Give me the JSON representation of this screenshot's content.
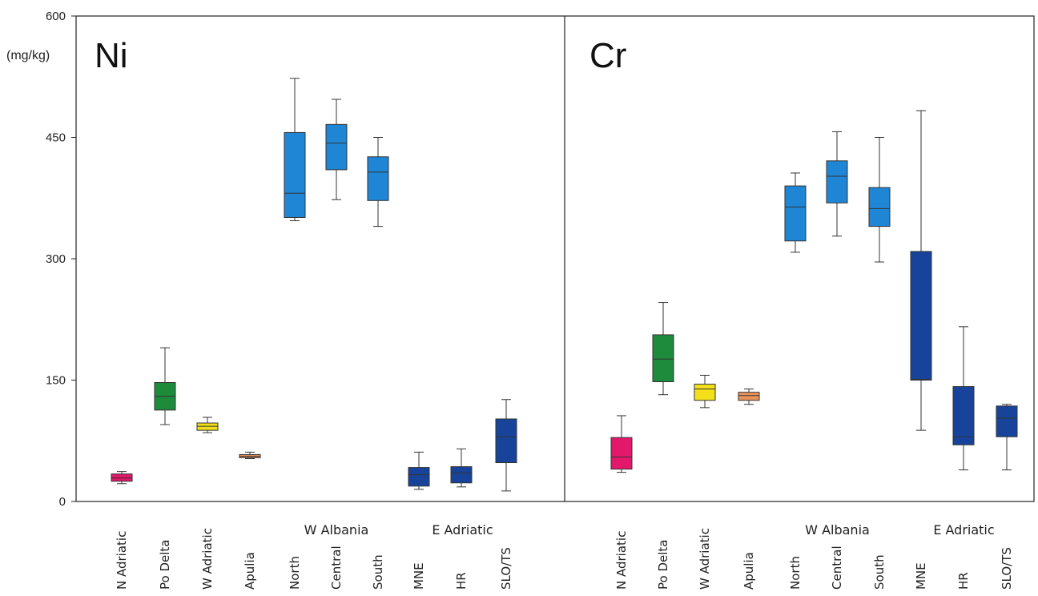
{
  "chart_data": {
    "type": "box",
    "ylabel": "(mg/kg)",
    "ylim": [
      0,
      600
    ],
    "yticks": [
      "0",
      "150",
      "300",
      "450",
      "600"
    ],
    "groups": [
      {
        "label": "",
        "categories": [
          "N Adriatic"
        ]
      },
      {
        "label": "",
        "categories": [
          "Po Delta"
        ]
      },
      {
        "label": "",
        "categories": [
          "W Adriatic"
        ]
      },
      {
        "label": "",
        "categories": [
          "Apulia"
        ]
      },
      {
        "label": "W Albania",
        "categories": [
          "North",
          "Central",
          "South"
        ]
      },
      {
        "label": "E Adriatic",
        "categories": [
          "MNE",
          "HR",
          "SLO/TS"
        ]
      }
    ],
    "categories": [
      "N Adriatic",
      "Po Delta",
      "W Adriatic",
      "Apulia",
      "North",
      "Central",
      "South",
      "MNE",
      "HR",
      "SLO/TS"
    ],
    "colors": [
      "#e4186b",
      "#1e8a3c",
      "#f4e01a",
      "#e8935a",
      "#1f86d6",
      "#1f86d6",
      "#1f86d6",
      "#17449a",
      "#17449a",
      "#17449a"
    ],
    "panels": [
      {
        "title": "Ni",
        "boxes": [
          {
            "min": 22,
            "q1": 25,
            "median": 29,
            "q3": 34,
            "max": 37
          },
          {
            "min": 95,
            "q1": 113,
            "median": 130,
            "q3": 147,
            "max": 190
          },
          {
            "min": 85,
            "q1": 88,
            "median": 93,
            "q3": 97,
            "max": 104
          },
          {
            "min": 53,
            "q1": 54,
            "median": 56,
            "q3": 58,
            "max": 61
          },
          {
            "min": 347,
            "q1": 351,
            "median": 381,
            "q3": 456,
            "max": 523
          },
          {
            "min": 373,
            "q1": 410,
            "median": 443,
            "q3": 466,
            "max": 497
          },
          {
            "min": 340,
            "q1": 372,
            "median": 407,
            "q3": 426,
            "max": 450
          },
          {
            "min": 15,
            "q1": 19,
            "median": 33,
            "q3": 42,
            "max": 61
          },
          {
            "min": 18,
            "q1": 23,
            "median": 35,
            "q3": 43,
            "max": 65
          },
          {
            "min": 13,
            "q1": 48,
            "median": 80,
            "q3": 102,
            "max": 126
          }
        ]
      },
      {
        "title": "Cr",
        "boxes": [
          {
            "min": 36,
            "q1": 40,
            "median": 55,
            "q3": 79,
            "max": 106
          },
          {
            "min": 132,
            "q1": 148,
            "median": 176,
            "q3": 206,
            "max": 246
          },
          {
            "min": 116,
            "q1": 125,
            "median": 139,
            "q3": 145,
            "max": 156
          },
          {
            "min": 120,
            "q1": 125,
            "median": 131,
            "q3": 135,
            "max": 139
          },
          {
            "min": 308,
            "q1": 322,
            "median": 364,
            "q3": 390,
            "max": 406
          },
          {
            "min": 328,
            "q1": 369,
            "median": 402,
            "q3": 421,
            "max": 457
          },
          {
            "min": 296,
            "q1": 340,
            "median": 362,
            "q3": 388,
            "max": 450
          },
          {
            "min": 88,
            "q1": 150,
            "median": 151,
            "q3": 309,
            "max": 483
          },
          {
            "min": 39,
            "q1": 70,
            "median": 80,
            "q3": 142,
            "max": 216
          },
          {
            "min": 39,
            "q1": 80,
            "median": 103,
            "q3": 118,
            "max": 120
          }
        ]
      }
    ]
  }
}
